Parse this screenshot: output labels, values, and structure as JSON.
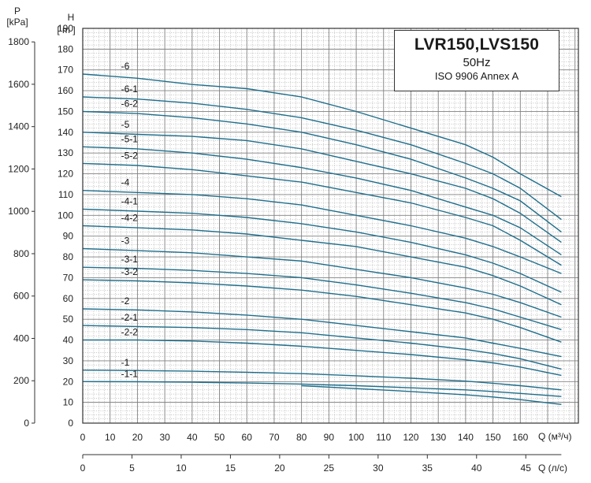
{
  "title_box": {
    "title": "LVR150,LVS150",
    "frequency": "50Hz",
    "standard": "ISO 9906 Annex A"
  },
  "left_axis": {
    "label_top": "P",
    "label_unit": "[kPa]",
    "ticks": [
      "1800",
      "1600",
      "1400",
      "1200",
      "1000",
      "800",
      "600",
      "400",
      "200",
      "0"
    ]
  },
  "h_axis": {
    "label_top": "H",
    "label_unit": "[ m ]",
    "ticks": [
      "190",
      "180",
      "170",
      "160",
      "150",
      "140",
      "130",
      "120",
      "110",
      "100",
      "90",
      "80",
      "70",
      "60",
      "50",
      "40",
      "30",
      "20",
      "10",
      "0"
    ]
  },
  "x_axis_m3h": {
    "unit_label": "Q (м³/ч)",
    "ticks": [
      "0",
      "10",
      "20",
      "30",
      "40",
      "50",
      "60",
      "70",
      "80",
      "90",
      "100",
      "110",
      "120",
      "130",
      "140",
      "150",
      "160"
    ]
  },
  "x_axis_ls": {
    "unit_label": "Q (л/с)",
    "ticks": [
      "0",
      "5",
      "10",
      "15",
      "20",
      "25",
      "30",
      "35",
      "40",
      "45"
    ]
  },
  "chart_data": {
    "type": "line",
    "xlabel": "Q (м³/ч)",
    "ylabel": "H [ m ]",
    "xlim": [
      0,
      180
    ],
    "ylim": [
      0,
      190
    ],
    "grid": true,
    "secondary_x": {
      "label": "Q (л/с)",
      "ticks": [
        0,
        5,
        10,
        15,
        20,
        25,
        30,
        35,
        40,
        45
      ]
    },
    "secondary_y": {
      "label": "P [kPa]",
      "ticks": [
        0,
        200,
        400,
        600,
        800,
        1000,
        1200,
        1400,
        1600,
        1800
      ]
    },
    "series": [
      {
        "name": "-6",
        "x": [
          0,
          20,
          40,
          60,
          80,
          100,
          120,
          140,
          150,
          160,
          175
        ],
        "y": [
          168,
          166,
          163,
          161,
          157,
          150,
          142,
          134,
          128,
          120,
          109
        ]
      },
      {
        "name": "-6-1",
        "x": [
          0,
          20,
          40,
          60,
          80,
          100,
          120,
          140,
          150,
          160,
          175
        ],
        "y": [
          157,
          156,
          154,
          151,
          147,
          141,
          134,
          125,
          120,
          113,
          98
        ]
      },
      {
        "name": "-6-2",
        "x": [
          0,
          20,
          40,
          60,
          80,
          100,
          120,
          140,
          150,
          160,
          175
        ],
        "y": [
          150,
          149,
          147,
          144,
          140,
          134,
          127,
          118,
          113,
          107,
          92
        ]
      },
      {
        "name": "-5",
        "x": [
          0,
          20,
          40,
          60,
          80,
          100,
          120,
          140,
          150,
          160,
          175
        ],
        "y": [
          140,
          139,
          138,
          136,
          132,
          126,
          120,
          113,
          108,
          101,
          87
        ]
      },
      {
        "name": "-5-1",
        "x": [
          0,
          20,
          40,
          60,
          80,
          100,
          120,
          140,
          150,
          160,
          175
        ],
        "y": [
          133,
          132,
          130,
          127,
          123,
          118,
          112,
          104,
          100,
          94,
          81
        ]
      },
      {
        "name": "-5-2",
        "x": [
          0,
          20,
          40,
          60,
          80,
          100,
          120,
          140,
          150,
          160,
          175
        ],
        "y": [
          125,
          124,
          122,
          119,
          116,
          111,
          106,
          99,
          95,
          88,
          76
        ]
      },
      {
        "name": "-4",
        "x": [
          0,
          20,
          40,
          60,
          80,
          100,
          120,
          140,
          150,
          160,
          175
        ],
        "y": [
          112,
          111,
          110,
          108,
          105,
          100,
          95,
          89,
          85,
          80,
          72
        ]
      },
      {
        "name": "-4-1",
        "x": [
          0,
          20,
          40,
          60,
          80,
          100,
          120,
          140,
          150,
          160,
          175
        ],
        "y": [
          103,
          102,
          101,
          99,
          96,
          92,
          87,
          81,
          77,
          72,
          63
        ]
      },
      {
        "name": "-4-2",
        "x": [
          0,
          20,
          40,
          60,
          80,
          100,
          120,
          140,
          150,
          160,
          175
        ],
        "y": [
          95,
          94,
          93,
          91,
          88,
          85,
          80,
          75,
          71,
          66,
          57
        ]
      },
      {
        "name": "-3",
        "x": [
          0,
          20,
          40,
          60,
          80,
          100,
          120,
          140,
          150,
          160,
          175
        ],
        "y": [
          84,
          83,
          82,
          80,
          78,
          74,
          70,
          65,
          62,
          58,
          51
        ]
      },
      {
        "name": "-3-1",
        "x": [
          0,
          20,
          40,
          60,
          80,
          100,
          120,
          140,
          150,
          160,
          175
        ],
        "y": [
          75,
          74.5,
          73.5,
          72,
          70,
          66.5,
          62.5,
          58,
          55,
          51,
          45
        ]
      },
      {
        "name": "-3-2",
        "x": [
          0,
          20,
          40,
          60,
          80,
          100,
          120,
          140,
          150,
          160,
          175
        ],
        "y": [
          69,
          68.5,
          67.5,
          66,
          64,
          61,
          57,
          53,
          50,
          46,
          39
        ]
      },
      {
        "name": "-2",
        "x": [
          0,
          20,
          40,
          60,
          80,
          100,
          120,
          140,
          150,
          160,
          175
        ],
        "y": [
          55,
          54.5,
          53.5,
          52,
          50,
          47,
          44,
          41,
          38.5,
          36,
          32
        ]
      },
      {
        "name": "-2-1",
        "x": [
          0,
          20,
          40,
          60,
          80,
          100,
          120,
          140,
          150,
          160,
          175
        ],
        "y": [
          47,
          46.5,
          46,
          45,
          43.5,
          41,
          38.5,
          35.5,
          33.5,
          31,
          26
        ]
      },
      {
        "name": "-2-2",
        "x": [
          0,
          20,
          40,
          60,
          80,
          100,
          120,
          140,
          150,
          160,
          175
        ],
        "y": [
          40,
          40,
          39.5,
          38.5,
          37,
          35,
          33,
          30.5,
          29,
          27,
          23
        ]
      },
      {
        "name": "-1",
        "x": [
          0,
          20,
          40,
          60,
          80,
          100,
          120,
          140,
          150,
          160,
          175
        ],
        "y": [
          25.5,
          25.3,
          25,
          24.5,
          23.8,
          22.8,
          21.6,
          20.2,
          19.2,
          18,
          16
        ]
      },
      {
        "name": "-1-1",
        "x": [
          0,
          20,
          40,
          60,
          80,
          100,
          120,
          140,
          150,
          160,
          175
        ],
        "y": [
          20,
          19.9,
          19.7,
          19.3,
          18.8,
          18,
          17,
          16,
          15.2,
          14.3,
          12.8
        ]
      },
      {
        "name": "",
        "x": [
          80,
          100,
          120,
          140,
          150,
          160,
          175
        ],
        "y": [
          18,
          16.6,
          15.2,
          13.6,
          12.6,
          11.3,
          9
        ]
      }
    ]
  }
}
